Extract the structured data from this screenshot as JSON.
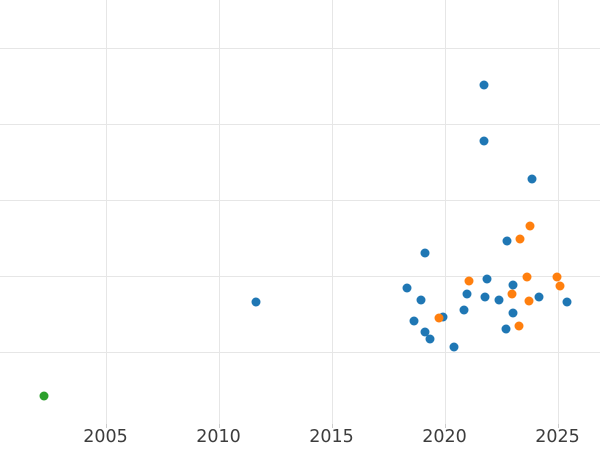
{
  "colors": {
    "background": "#ffffff",
    "grid": "#e6e6e6",
    "tick_mark": "#cccccc",
    "tick_label": "#3d3d3d"
  },
  "chart_data": {
    "type": "scatter",
    "title": "",
    "xlabel": "",
    "ylabel": "",
    "grid": true,
    "legend_visible": false,
    "x_axis": {
      "min": 2000.33,
      "max": 2026.88,
      "ticks": [
        2005,
        2010,
        2015,
        2020,
        2025
      ]
    },
    "y_axis": {
      "min": -0.94,
      "max": 4.63,
      "gridlines": [
        0,
        1,
        2,
        3,
        4
      ],
      "tick_labels_visible": false
    },
    "marker_diameter_px": 9,
    "series": [
      {
        "name": "blue",
        "color": "#1f77b4",
        "points": [
          [
            2011.66,
            0.66
          ],
          [
            2021.75,
            3.52
          ],
          [
            2021.75,
            2.78
          ],
          [
            2023.87,
            2.28
          ],
          [
            2022.77,
            1.47
          ],
          [
            2019.14,
            1.31
          ],
          [
            2018.34,
            0.85
          ],
          [
            2018.96,
            0.69
          ],
          [
            2019.93,
            0.47
          ],
          [
            2018.65,
            0.41
          ],
          [
            2019.14,
            0.27
          ],
          [
            2019.36,
            0.18
          ],
          [
            2020.42,
            0.07
          ],
          [
            2021.88,
            0.97
          ],
          [
            2021.0,
            0.77
          ],
          [
            2021.79,
            0.73
          ],
          [
            2022.41,
            0.69
          ],
          [
            2020.86,
            0.56
          ],
          [
            2023.03,
            0.89
          ],
          [
            2023.03,
            0.52
          ],
          [
            2024.18,
            0.73
          ],
          [
            2025.42,
            0.66
          ],
          [
            2022.72,
            0.31
          ]
        ]
      },
      {
        "name": "orange",
        "color": "#ff7f0e",
        "points": [
          [
            2023.78,
            1.66
          ],
          [
            2023.34,
            1.49
          ],
          [
            2021.08,
            0.94
          ],
          [
            2019.76,
            0.45
          ],
          [
            2023.65,
            0.99
          ],
          [
            2022.99,
            0.77
          ],
          [
            2023.74,
            0.68
          ],
          [
            2023.3,
            0.35
          ],
          [
            2024.98,
            0.99
          ],
          [
            2025.11,
            0.88
          ]
        ]
      },
      {
        "name": "green",
        "color": "#2ca02c",
        "points": [
          [
            2002.28,
            -0.57
          ]
        ]
      }
    ]
  }
}
